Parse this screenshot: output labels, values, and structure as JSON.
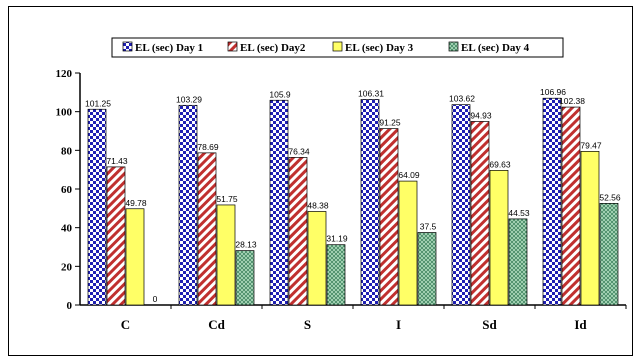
{
  "chart_data": {
    "type": "bar",
    "categories": [
      "C",
      "Cd",
      "S",
      "I",
      "Sd",
      "Id"
    ],
    "series": [
      {
        "name": "EL (sec)  Day 1",
        "values": [
          101.25,
          103.29,
          105.9,
          106.31,
          103.62,
          106.96
        ],
        "labels": [
          "101.25",
          "103.29",
          "105.9",
          "106.31",
          "103.62",
          "106.96"
        ]
      },
      {
        "name": "EL (sec)  Day2",
        "values": [
          71.43,
          78.69,
          76.34,
          91.25,
          94.93,
          102.38
        ],
        "labels": [
          "71.43",
          "78.69",
          "76.34",
          "91.25",
          "94.93",
          "102.38"
        ]
      },
      {
        "name": "EL (sec)  Day 3",
        "values": [
          49.78,
          51.75,
          48.38,
          64.09,
          69.63,
          79.47
        ],
        "labels": [
          "49.78",
          "51.75",
          "48.38",
          "64.09",
          "69.63",
          "79.47"
        ]
      },
      {
        "name": "EL (sec)  Day 4",
        "values": [
          0,
          28.13,
          31.19,
          37.5,
          44.53,
          52.56
        ],
        "labels": [
          "0",
          "28.13",
          "31.19",
          "37.5",
          "44.53",
          "52.56"
        ]
      }
    ],
    "yticks": [
      "0",
      "20",
      "40",
      "60",
      "80",
      "100",
      "120"
    ],
    "ylim": [
      0,
      120
    ],
    "legend": "top",
    "grid": false,
    "series_colors": [
      "#1f1fb4",
      "#c0302f",
      "#ffff66",
      "#2f8a5a"
    ]
  }
}
